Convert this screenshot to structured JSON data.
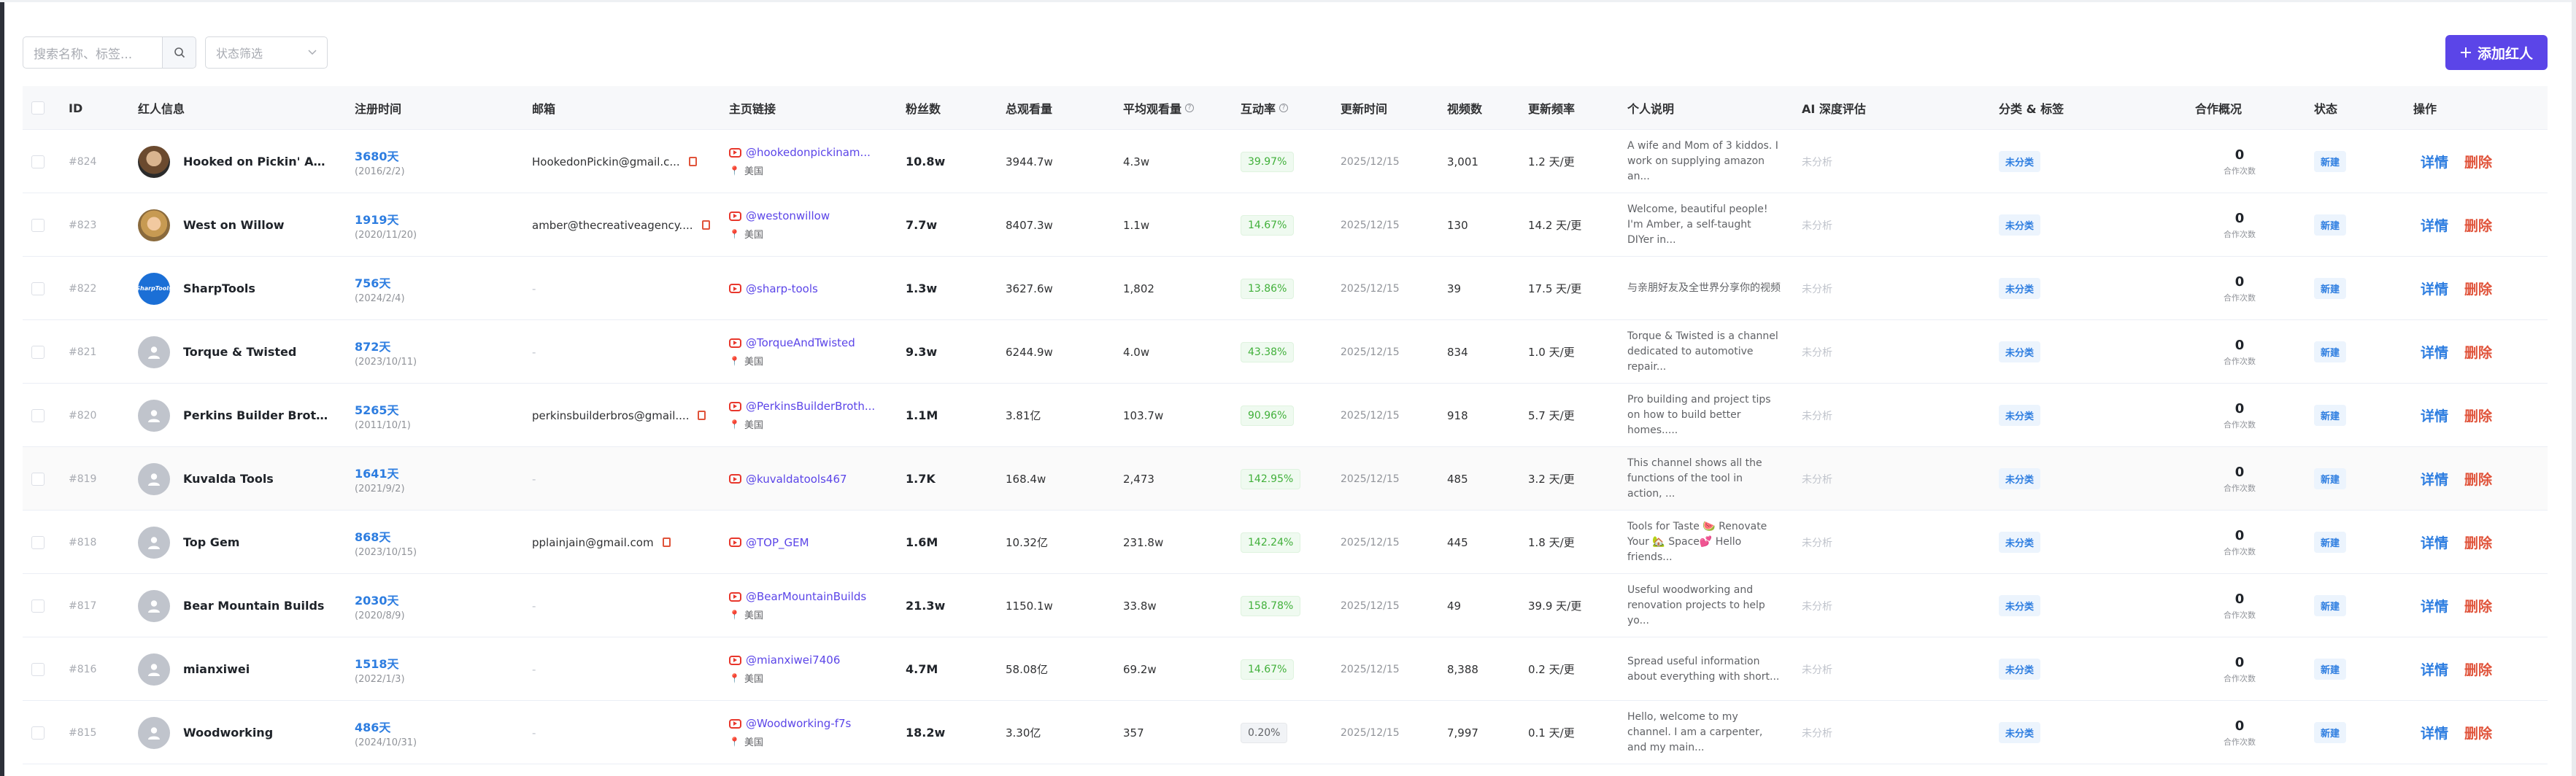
{
  "toolbar": {
    "search_placeholder": "搜索名称、标签...",
    "status_filter_placeholder": "状态筛选",
    "add_button_label": "添加红人"
  },
  "columns": {
    "id": "ID",
    "info": "红人信息",
    "registered": "注册时间",
    "email": "邮箱",
    "homepage": "主页链接",
    "followers": "粉丝数",
    "total_views": "总观看量",
    "avg_views": "平均观看量",
    "engagement": "互动率",
    "updated": "更新时间",
    "videos": "视频数",
    "frequency": "更新频率",
    "bio": "个人说明",
    "ai_eval": "AI 深度评估",
    "category": "分类 & 标签",
    "coop": "合作概况",
    "status": "状态",
    "actions": "操作"
  },
  "labels": {
    "coop_unit": "合作次数",
    "detail": "详情",
    "delete": "删除"
  },
  "rows": [
    {
      "id": "#824",
      "avatar": "photo1",
      "name": "Hooked on Pickin' Ama...",
      "days": "3680天",
      "date": "(2016/2/2)",
      "email": "HookedonPickin@gmail.c...",
      "link": "@hookedonpickinam...",
      "location": "美国",
      "followers": "10.8w",
      "total_views": "3944.7w",
      "avg_views": "4.3w",
      "engagement": "39.97%",
      "eng_low": false,
      "updated": "2025/12/15",
      "videos": "3,001",
      "frequency": "1.2 天/更",
      "bio": "A wife and Mom of 3 kiddos. I work on supplying amazon an...",
      "ai": "未分析",
      "category": "未分类",
      "coop_count": "0",
      "status": "新建"
    },
    {
      "id": "#823",
      "avatar": "photo2",
      "name": "West on Willow",
      "days": "1919天",
      "date": "(2020/11/20)",
      "email": "amber@thecreativeagency....",
      "link": "@westonwillow",
      "location": "美国",
      "followers": "7.7w",
      "total_views": "8407.3w",
      "avg_views": "1.1w",
      "engagement": "14.67%",
      "eng_low": false,
      "updated": "2025/12/15",
      "videos": "130",
      "frequency": "14.2 天/更",
      "bio": "Welcome, beautiful people! I'm Amber, a self-taught DIYer in...",
      "ai": "未分析",
      "category": "未分类",
      "coop_count": "0",
      "status": "新建"
    },
    {
      "id": "#822",
      "avatar": "brand",
      "avatar_text": "SharpTools",
      "name": "SharpTools",
      "days": "756天",
      "date": "(2024/2/4)",
      "email": "-",
      "link": "@sharp-tools",
      "location": "",
      "followers": "1.3w",
      "total_views": "3627.6w",
      "avg_views": "1,802",
      "engagement": "13.86%",
      "eng_low": false,
      "updated": "2025/12/15",
      "videos": "39",
      "frequency": "17.5 天/更",
      "bio": "与亲朋好友及全世界分享你的视频",
      "ai": "未分析",
      "category": "未分类",
      "coop_count": "0",
      "status": "新建"
    },
    {
      "id": "#821",
      "avatar": "default",
      "name": "Torque & Twisted",
      "days": "872天",
      "date": "(2023/10/11)",
      "email": "-",
      "link": "@TorqueAndTwisted",
      "location": "美国",
      "followers": "9.3w",
      "total_views": "6244.9w",
      "avg_views": "4.0w",
      "engagement": "43.38%",
      "eng_low": false,
      "updated": "2025/12/15",
      "videos": "834",
      "frequency": "1.0 天/更",
      "bio": "Torque & Twisted is a channel dedicated to automotive repair...",
      "ai": "未分析",
      "category": "未分类",
      "coop_count": "0",
      "status": "新建"
    },
    {
      "id": "#820",
      "avatar": "default",
      "name": "Perkins Builder Brothers",
      "days": "5265天",
      "date": "(2011/10/1)",
      "email": "perkinsbuilderbros@gmail....",
      "link": "@PerkinsBuilderBroth...",
      "location": "美国",
      "followers": "1.1M",
      "total_views": "3.81亿",
      "avg_views": "103.7w",
      "engagement": "90.96%",
      "eng_low": false,
      "updated": "2025/12/15",
      "videos": "918",
      "frequency": "5.7 天/更",
      "bio": "Pro building and project tips on how to build better homes.....",
      "ai": "未分析",
      "category": "未分类",
      "coop_count": "0",
      "status": "新建"
    },
    {
      "id": "#819",
      "avatar": "default",
      "name": "Kuvalda Tools",
      "days": "1641天",
      "date": "(2021/9/2)",
      "email": "-",
      "link": "@kuvaldatools467",
      "location": "",
      "followers": "1.7K",
      "total_views": "168.4w",
      "avg_views": "2,473",
      "engagement": "142.95%",
      "eng_low": false,
      "updated": "2025/12/15",
      "videos": "485",
      "frequency": "3.2 天/更",
      "bio": "This channel shows all the functions of the tool in action, ...",
      "ai": "未分析",
      "category": "未分类",
      "coop_count": "0",
      "status": "新建"
    },
    {
      "id": "#818",
      "avatar": "default",
      "name": "Top Gem",
      "days": "868天",
      "date": "(2023/10/15)",
      "email": "pplainjain@gmail.com",
      "link": "@TOP_GEM",
      "location": "",
      "followers": "1.6M",
      "total_views": "10.32亿",
      "avg_views": "231.8w",
      "engagement": "142.24%",
      "eng_low": false,
      "updated": "2025/12/15",
      "videos": "445",
      "frequency": "1.8 天/更",
      "bio": "Tools for Taste 🍉 Renovate Your 🏡 Space💕 Hello friends...",
      "ai": "未分析",
      "category": "未分类",
      "coop_count": "0",
      "status": "新建"
    },
    {
      "id": "#817",
      "avatar": "default",
      "name": "Bear Mountain Builds",
      "days": "2030天",
      "date": "(2020/8/9)",
      "email": "-",
      "link": "@BearMountainBuilds",
      "location": "美国",
      "followers": "21.3w",
      "total_views": "1150.1w",
      "avg_views": "33.8w",
      "engagement": "158.78%",
      "eng_low": false,
      "updated": "2025/12/15",
      "videos": "49",
      "frequency": "39.9 天/更",
      "bio": "Useful woodworking and renovation projects to help yo...",
      "ai": "未分析",
      "category": "未分类",
      "coop_count": "0",
      "status": "新建"
    },
    {
      "id": "#816",
      "avatar": "default",
      "name": "mianxiwei",
      "days": "1518天",
      "date": "(2022/1/3)",
      "email": "-",
      "link": "@mianxiwei7406",
      "location": "美国",
      "followers": "4.7M",
      "total_views": "58.08亿",
      "avg_views": "69.2w",
      "engagement": "14.67%",
      "eng_low": false,
      "updated": "2025/12/15",
      "videos": "8,388",
      "frequency": "0.2 天/更",
      "bio": "Spread useful information about everything with short...",
      "ai": "未分析",
      "category": "未分类",
      "coop_count": "0",
      "status": "新建"
    },
    {
      "id": "#815",
      "avatar": "default",
      "name": "Woodworking",
      "days": "486天",
      "date": "(2024/10/31)",
      "email": "-",
      "link": "@Woodworking-f7s",
      "location": "美国",
      "followers": "18.2w",
      "total_views": "3.30亿",
      "avg_views": "357",
      "engagement": "0.20%",
      "eng_low": true,
      "updated": "2025/12/15",
      "videos": "7,997",
      "frequency": "0.1 天/更",
      "bio": "Hello, welcome to my channel. I am a carpenter, and my main...",
      "ai": "未分析",
      "category": "未分类",
      "coop_count": "0",
      "status": "新建"
    }
  ]
}
